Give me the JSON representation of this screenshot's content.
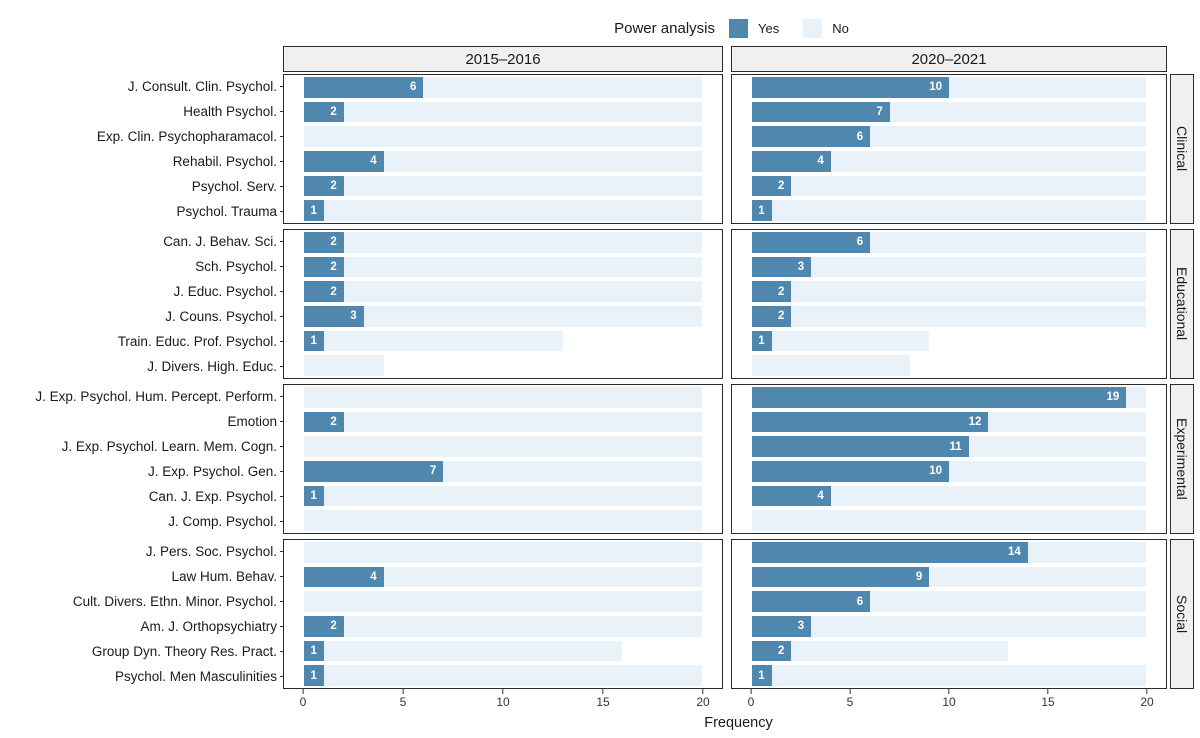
{
  "legend": {
    "title": "Power analysis",
    "yes_label": "Yes",
    "no_label": "No"
  },
  "colors": {
    "yes": "#4f87af",
    "no": "#e9f2f9",
    "strip_bg": "#f0f0f0",
    "panel_border": "#2b2b2b"
  },
  "chart_data": {
    "type": "bar",
    "orientation": "horizontal",
    "stacked": true,
    "title": "",
    "xlabel": "Frequency",
    "x_max": 20,
    "x_ticks": [
      0,
      5,
      10,
      15,
      20
    ],
    "legend": {
      "title": "Power analysis",
      "series": [
        "Yes",
        "No"
      ],
      "position": "top"
    },
    "column_facets": [
      "2015–2016",
      "2020–2021"
    ],
    "row_facets": [
      {
        "category": "Clinical",
        "journals": [
          "J. Consult. Clin. Psychol.",
          "Health Psychol.",
          "Exp. Clin. Psychopharamacol.",
          "Rehabil. Psychol.",
          "Psychol. Serv.",
          "Psychol. Trauma"
        ],
        "panels": [
          {
            "column": "2015–2016",
            "yes": [
              6,
              2,
              0,
              4,
              2,
              1
            ],
            "no": [
              14,
              18,
              20,
              16,
              18,
              19
            ]
          },
          {
            "column": "2020–2021",
            "yes": [
              10,
              7,
              6,
              4,
              2,
              1
            ],
            "no": [
              10,
              13,
              14,
              16,
              18,
              19
            ]
          }
        ]
      },
      {
        "category": "Educational",
        "journals": [
          "Can. J. Behav. Sci.",
          "Sch. Psychol.",
          "J. Educ. Psychol.",
          "J. Couns. Psychol.",
          "Train. Educ. Prof. Psychol.",
          "J. Divers. High. Educ."
        ],
        "panels": [
          {
            "column": "2015–2016",
            "yes": [
              2,
              2,
              2,
              3,
              1,
              0
            ],
            "no": [
              18,
              18,
              18,
              17,
              12,
              4
            ]
          },
          {
            "column": "2020–2021",
            "yes": [
              6,
              3,
              2,
              2,
              1,
              0
            ],
            "no": [
              14,
              17,
              18,
              18,
              8,
              8
            ]
          }
        ]
      },
      {
        "category": "Experimental",
        "journals": [
          "J. Exp. Psychol. Hum. Percept. Perform.",
          "Emotion",
          "J. Exp. Psychol. Learn. Mem. Cogn.",
          "J. Exp. Psychol. Gen.",
          "Can. J. Exp. Psychol.",
          "J. Comp. Psychol."
        ],
        "panels": [
          {
            "column": "2015–2016",
            "yes": [
              0,
              2,
              0,
              7,
              1,
              0
            ],
            "no": [
              20,
              18,
              20,
              13,
              19,
              20
            ]
          },
          {
            "column": "2020–2021",
            "yes": [
              19,
              12,
              11,
              10,
              4,
              0
            ],
            "no": [
              1,
              8,
              9,
              10,
              16,
              20
            ]
          }
        ]
      },
      {
        "category": "Social",
        "journals": [
          "J. Pers. Soc. Psychol.",
          "Law Hum. Behav.",
          "Cult. Divers. Ethn. Minor. Psychol.",
          "Am. J. Orthopsychiatry",
          "Group Dyn. Theory Res. Pract.",
          "Psychol. Men Masculinities"
        ],
        "panels": [
          {
            "column": "2015–2016",
            "yes": [
              0,
              4,
              0,
              2,
              1,
              1
            ],
            "no": [
              20,
              16,
              20,
              18,
              15,
              19
            ]
          },
          {
            "column": "2020–2021",
            "yes": [
              14,
              9,
              6,
              3,
              2,
              1
            ],
            "no": [
              6,
              11,
              14,
              17,
              11,
              19
            ]
          }
        ]
      }
    ]
  }
}
